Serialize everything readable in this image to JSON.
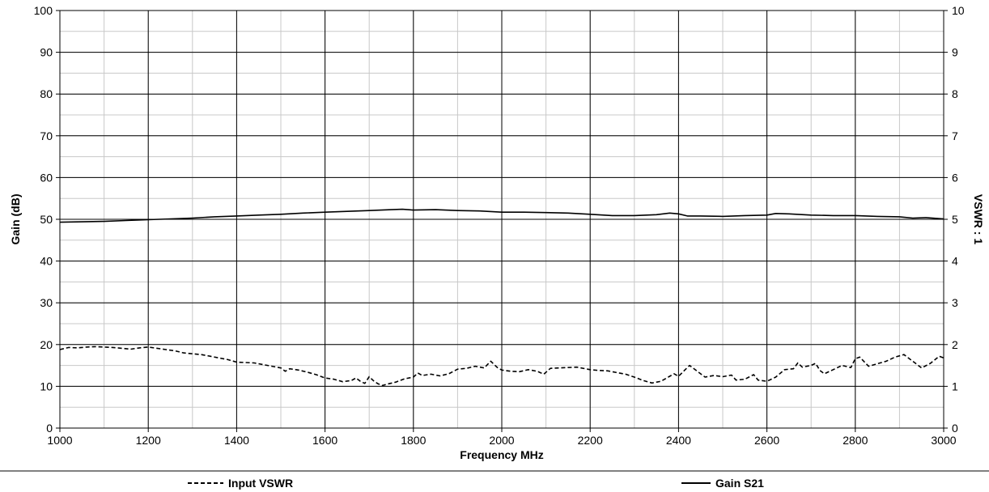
{
  "chart_data": {
    "type": "line",
    "x_axis": {
      "label": "Frequency MHz",
      "min": 1000,
      "max": 3000,
      "major_ticks": [
        1000,
        1200,
        1400,
        1600,
        1800,
        2000,
        2200,
        2400,
        2600,
        2800,
        3000
      ],
      "minor_step": 100
    },
    "y_axis_left": {
      "label": "Gain (dB)",
      "min": 0,
      "max": 100,
      "major_ticks": [
        0,
        10,
        20,
        30,
        40,
        50,
        60,
        70,
        80,
        90,
        100
      ],
      "minor_step": 5
    },
    "y_axis_right": {
      "label": "VSWR : 1",
      "min": 0,
      "max": 10,
      "major_ticks": [
        0,
        1,
        2,
        3,
        4,
        5,
        6,
        7,
        8,
        9,
        10
      ]
    },
    "grid": true,
    "legend_position": "bottom",
    "series": [
      {
        "name": "Input VSWR",
        "axis": "right",
        "line_style": "dashed",
        "color": "#000000",
        "points": [
          [
            1000,
            1.88
          ],
          [
            1020,
            1.93
          ],
          [
            1040,
            1.92
          ],
          [
            1060,
            1.94
          ],
          [
            1080,
            1.95
          ],
          [
            1100,
            1.94
          ],
          [
            1120,
            1.93
          ],
          [
            1140,
            1.91
          ],
          [
            1160,
            1.89
          ],
          [
            1180,
            1.92
          ],
          [
            1200,
            1.94
          ],
          [
            1220,
            1.91
          ],
          [
            1240,
            1.88
          ],
          [
            1260,
            1.85
          ],
          [
            1280,
            1.8
          ],
          [
            1300,
            1.78
          ],
          [
            1320,
            1.76
          ],
          [
            1340,
            1.72
          ],
          [
            1360,
            1.68
          ],
          [
            1380,
            1.64
          ],
          [
            1400,
            1.58
          ],
          [
            1420,
            1.57
          ],
          [
            1440,
            1.56
          ],
          [
            1460,
            1.52
          ],
          [
            1480,
            1.48
          ],
          [
            1500,
            1.44
          ],
          [
            1510,
            1.36
          ],
          [
            1520,
            1.42
          ],
          [
            1540,
            1.39
          ],
          [
            1560,
            1.34
          ],
          [
            1580,
            1.28
          ],
          [
            1600,
            1.2
          ],
          [
            1620,
            1.17
          ],
          [
            1640,
            1.11
          ],
          [
            1660,
            1.14
          ],
          [
            1670,
            1.2
          ],
          [
            1680,
            1.12
          ],
          [
            1690,
            1.07
          ],
          [
            1700,
            1.23
          ],
          [
            1710,
            1.13
          ],
          [
            1720,
            1.06
          ],
          [
            1730,
            1.02
          ],
          [
            1740,
            1.05
          ],
          [
            1760,
            1.1
          ],
          [
            1780,
            1.18
          ],
          [
            1800,
            1.22
          ],
          [
            1810,
            1.32
          ],
          [
            1820,
            1.26
          ],
          [
            1840,
            1.29
          ],
          [
            1860,
            1.25
          ],
          [
            1880,
            1.3
          ],
          [
            1900,
            1.41
          ],
          [
            1920,
            1.43
          ],
          [
            1940,
            1.48
          ],
          [
            1960,
            1.44
          ],
          [
            1975,
            1.6
          ],
          [
            1990,
            1.45
          ],
          [
            2000,
            1.39
          ],
          [
            2020,
            1.36
          ],
          [
            2040,
            1.35
          ],
          [
            2060,
            1.4
          ],
          [
            2080,
            1.36
          ],
          [
            2095,
            1.29
          ],
          [
            2110,
            1.43
          ],
          [
            2130,
            1.44
          ],
          [
            2150,
            1.45
          ],
          [
            2170,
            1.46
          ],
          [
            2200,
            1.4
          ],
          [
            2220,
            1.38
          ],
          [
            2240,
            1.37
          ],
          [
            2260,
            1.33
          ],
          [
            2280,
            1.29
          ],
          [
            2300,
            1.22
          ],
          [
            2320,
            1.14
          ],
          [
            2340,
            1.08
          ],
          [
            2360,
            1.12
          ],
          [
            2380,
            1.24
          ],
          [
            2390,
            1.3
          ],
          [
            2400,
            1.24
          ],
          [
            2415,
            1.4
          ],
          [
            2425,
            1.5
          ],
          [
            2440,
            1.38
          ],
          [
            2460,
            1.22
          ],
          [
            2480,
            1.26
          ],
          [
            2500,
            1.23
          ],
          [
            2520,
            1.27
          ],
          [
            2530,
            1.15
          ],
          [
            2550,
            1.17
          ],
          [
            2570,
            1.28
          ],
          [
            2580,
            1.15
          ],
          [
            2600,
            1.12
          ],
          [
            2620,
            1.22
          ],
          [
            2640,
            1.4
          ],
          [
            2660,
            1.42
          ],
          [
            2670,
            1.56
          ],
          [
            2680,
            1.46
          ],
          [
            2700,
            1.5
          ],
          [
            2710,
            1.55
          ],
          [
            2720,
            1.38
          ],
          [
            2730,
            1.3
          ],
          [
            2750,
            1.4
          ],
          [
            2770,
            1.5
          ],
          [
            2790,
            1.45
          ],
          [
            2800,
            1.66
          ],
          [
            2810,
            1.7
          ],
          [
            2830,
            1.48
          ],
          [
            2850,
            1.54
          ],
          [
            2870,
            1.6
          ],
          [
            2890,
            1.7
          ],
          [
            2910,
            1.76
          ],
          [
            2930,
            1.6
          ],
          [
            2950,
            1.44
          ],
          [
            2970,
            1.55
          ],
          [
            2990,
            1.72
          ],
          [
            3000,
            1.68
          ]
        ]
      },
      {
        "name": "Gain S21",
        "axis": "left",
        "line_style": "solid",
        "color": "#000000",
        "points": [
          [
            1000,
            49.3
          ],
          [
            1050,
            49.4
          ],
          [
            1100,
            49.5
          ],
          [
            1150,
            49.7
          ],
          [
            1200,
            49.9
          ],
          [
            1250,
            50.1
          ],
          [
            1300,
            50.3
          ],
          [
            1350,
            50.6
          ],
          [
            1400,
            50.8
          ],
          [
            1450,
            51.0
          ],
          [
            1500,
            51.2
          ],
          [
            1550,
            51.5
          ],
          [
            1600,
            51.7
          ],
          [
            1650,
            51.9
          ],
          [
            1700,
            52.1
          ],
          [
            1750,
            52.3
          ],
          [
            1775,
            52.4
          ],
          [
            1800,
            52.2
          ],
          [
            1850,
            52.3
          ],
          [
            1900,
            52.1
          ],
          [
            1950,
            52.0
          ],
          [
            2000,
            51.7
          ],
          [
            2050,
            51.7
          ],
          [
            2100,
            51.6
          ],
          [
            2150,
            51.5
          ],
          [
            2200,
            51.2
          ],
          [
            2250,
            50.9
          ],
          [
            2300,
            50.9
          ],
          [
            2350,
            51.1
          ],
          [
            2380,
            51.5
          ],
          [
            2400,
            51.3
          ],
          [
            2420,
            50.8
          ],
          [
            2450,
            50.8
          ],
          [
            2500,
            50.7
          ],
          [
            2550,
            50.9
          ],
          [
            2600,
            51.0
          ],
          [
            2620,
            51.4
          ],
          [
            2650,
            51.3
          ],
          [
            2700,
            51.0
          ],
          [
            2750,
            50.9
          ],
          [
            2800,
            50.9
          ],
          [
            2850,
            50.7
          ],
          [
            2900,
            50.6
          ],
          [
            2930,
            50.3
          ],
          [
            2960,
            50.4
          ],
          [
            3000,
            50.1
          ]
        ]
      }
    ]
  }
}
